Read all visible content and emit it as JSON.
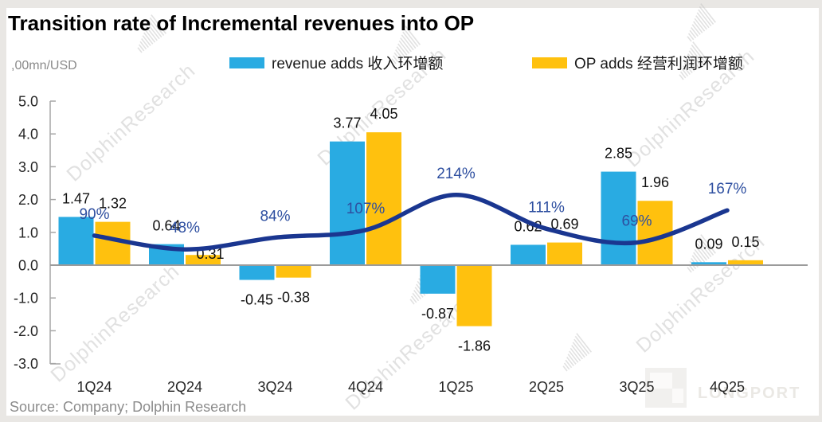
{
  "title": "Transition rate of Incremental revenues into OP",
  "unit_label": ",00mn/USD",
  "legend": [
    {
      "label": "revenue adds 收入环增额",
      "color": "#29ABE2"
    },
    {
      "label": "OP adds 经营利润环增额",
      "color": "#FFC10E"
    }
  ],
  "source": "Source: Company; Dolphin Research",
  "watermark": {
    "text": "DolphinResearch",
    "logo_text": "LONGPORT"
  },
  "chart_data": {
    "type": "bar+line",
    "categories": [
      "1Q24",
      "2Q24",
      "3Q24",
      "4Q24",
      "1Q25",
      "2Q25",
      "3Q25",
      "4Q25"
    ],
    "series": [
      {
        "name": "revenue adds 收入环增额",
        "type": "bar",
        "key": "revenue",
        "color": "#29ABE2",
        "values": [
          1.47,
          0.64,
          -0.45,
          3.77,
          -0.87,
          0.62,
          2.85,
          0.09
        ]
      },
      {
        "name": "OP adds 经营利润环增额",
        "type": "bar",
        "key": "op",
        "color": "#FFC10E",
        "values": [
          1.32,
          0.31,
          -0.38,
          4.05,
          -1.86,
          0.69,
          1.96,
          0.15
        ]
      },
      {
        "name": "transition rate",
        "type": "line",
        "key": "rate",
        "color": "#1A3690",
        "values_percent": [
          90,
          48,
          84,
          107,
          214,
          111,
          69,
          167
        ]
      }
    ],
    "title": "Transition rate of Incremental revenues into OP",
    "xlabel": "",
    "ylabel": ",00mn/USD",
    "ylim": [
      -3.0,
      5.0
    ],
    "yticks": [
      5.0,
      4.0,
      3.0,
      2.0,
      1.0,
      0.0,
      -1.0,
      -2.0,
      -3.0
    ],
    "grid": false,
    "legend_position": "top",
    "line_smoothed": true,
    "percent_label_color": "#2E4FA0"
  }
}
